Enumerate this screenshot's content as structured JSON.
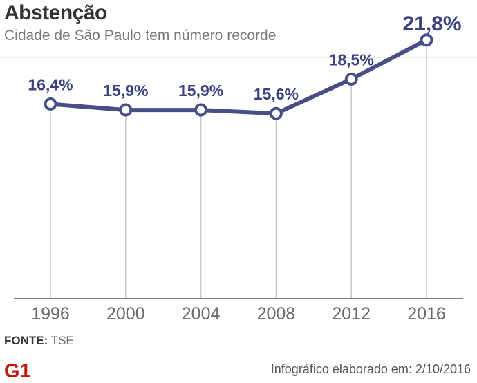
{
  "header": {
    "title": "Abstenção",
    "subtitle": "Cidade de São Paulo tem número recorde"
  },
  "footer": {
    "source_label": "FONTE:",
    "source_value": "TSE",
    "logo_text": "G1",
    "credit": "Infográfico elaborado em: 2/10/2016"
  },
  "colors": {
    "line": "#474f86",
    "label": "#3b4280",
    "grid": "#c8c8c8",
    "axis": "#7f7f7f",
    "tick_text": "#6a6a6a",
    "logo": "#c4170c"
  },
  "chart_data": {
    "type": "line",
    "title": "Abstenção",
    "subtitle": "Cidade de São Paulo tem número recorde",
    "categories": [
      "1996",
      "2000",
      "2004",
      "2008",
      "2012",
      "2016"
    ],
    "values": [
      16.4,
      15.9,
      15.9,
      15.6,
      18.5,
      21.8
    ],
    "data_labels": [
      "16,4%",
      "15,9%",
      "15,9%",
      "15,6%",
      "18,5%",
      "21,8%"
    ],
    "xlabel": "",
    "ylabel": "",
    "ylim": [
      0,
      24
    ],
    "grid": "vertical",
    "legend": "none"
  }
}
